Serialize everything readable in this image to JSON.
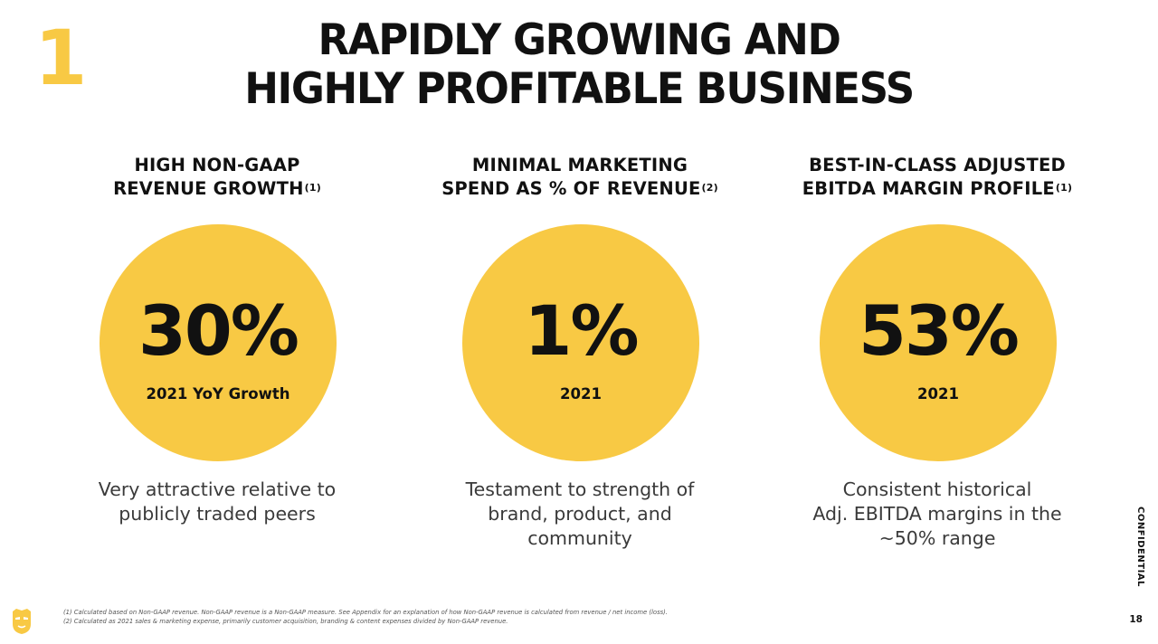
{
  "colors": {
    "accent": "#F8C944",
    "text": "#111111",
    "muted": "#3a3a3a"
  },
  "section_number": "1",
  "title": {
    "line1": "RAPIDLY GROWING AND",
    "line2": "HIGHLY PROFITABLE BUSINESS"
  },
  "columns": [
    {
      "heading_line1": "HIGH NON-GAAP",
      "heading_line2": "REVENUE GROWTH",
      "footnote_ref": "(1)",
      "stat": "30%",
      "stat_label": "2021 YoY Growth",
      "desc_line1": "Very attractive relative to",
      "desc_line2": "publicly traded peers",
      "desc_line3": ""
    },
    {
      "heading_line1": "MINIMAL MARKETING",
      "heading_line2": "SPEND AS % OF REVENUE",
      "footnote_ref": "(2)",
      "stat": "1%",
      "stat_label": "2021",
      "desc_line1": "Testament to strength of",
      "desc_line2": "brand, product, and",
      "desc_line3": "community"
    },
    {
      "heading_line1": "BEST-IN-CLASS ADJUSTED",
      "heading_line2": "EBITDA MARGIN PROFILE",
      "footnote_ref": "(1)",
      "stat": "53%",
      "stat_label": "2021",
      "desc_line1": "Consistent historical",
      "desc_line2": "Adj. EBITDA margins in the",
      "desc_line3": "~50% range"
    }
  ],
  "side_label": "CONFIDENTIAL",
  "footnotes": [
    "(1)  Calculated based on Non-GAAP revenue. Non-GAAP revenue is a Non-GAAP measure. See Appendix for an explanation of how Non-GAAP revenue is calculated from revenue / net income (loss).",
    "(2)  Calculated as 2021 sales & marketing expense, primarily customer acquisition, branding & content expenses divided by Non-GAAP revenue."
  ],
  "page_number": "18",
  "logo_icon": "mask-logo-icon"
}
